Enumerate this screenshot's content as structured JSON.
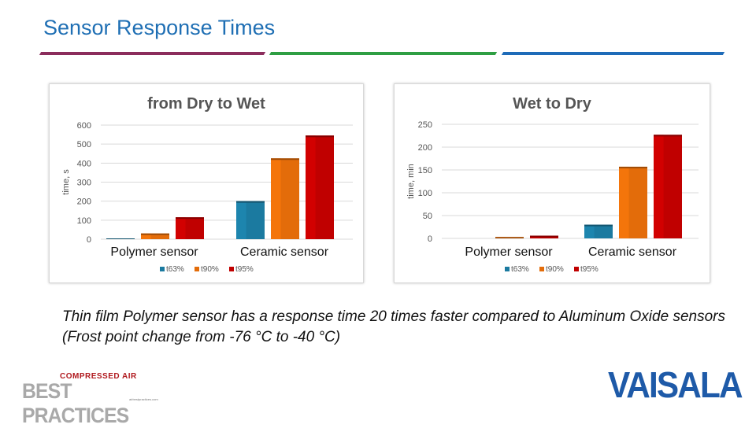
{
  "slide": {
    "title": "Sensor Response Times",
    "rule_colors": [
      "#8b2d5c",
      "#2e9e43",
      "#1e6bb8"
    ],
    "caption": "Thin film Polymer sensor has a response time 20 times faster compared to Aluminum Oxide sensors (Frost point change from -76 °C to -40 °C)",
    "logos": {
      "left_small": "COMPRESSED AIR",
      "left_big": "BEST PRACTICES",
      "left_url": "airbestpractices.com",
      "right": "VAISALA"
    }
  },
  "series_colors": {
    "t63%": "#1b7aa0",
    "t90%": "#e36c0a",
    "t95%": "#c00000"
  },
  "chart_data": [
    {
      "type": "bar",
      "title": "from Dry to Wet",
      "ylabel": "time, s",
      "xlabel": "",
      "categories": [
        "Polymer sensor",
        "Ceramic sensor"
      ],
      "series": [
        {
          "name": "t63%",
          "values": [
            3,
            200
          ]
        },
        {
          "name": "t90%",
          "values": [
            30,
            425
          ]
        },
        {
          "name": "t95%",
          "values": [
            115,
            545
          ]
        }
      ],
      "ylim": [
        0,
        600
      ],
      "yticks": [
        "0",
        "100",
        "200",
        "300",
        "400",
        "500",
        "600"
      ],
      "grid": true,
      "legend": "bottom"
    },
    {
      "type": "bar",
      "title": "Wet to Dry",
      "ylabel": "time, min",
      "xlabel": "",
      "categories": [
        "Polymer sensor",
        "Ceramic sensor"
      ],
      "series": [
        {
          "name": "t63%",
          "values": [
            0,
            30
          ]
        },
        {
          "name": "t90%",
          "values": [
            3,
            157
          ]
        },
        {
          "name": "t95%",
          "values": [
            6,
            227
          ]
        }
      ],
      "ylim": [
        0,
        250
      ],
      "yticks": [
        "0",
        "50",
        "100",
        "150",
        "200",
        "250"
      ],
      "grid": true,
      "legend": "bottom"
    }
  ]
}
